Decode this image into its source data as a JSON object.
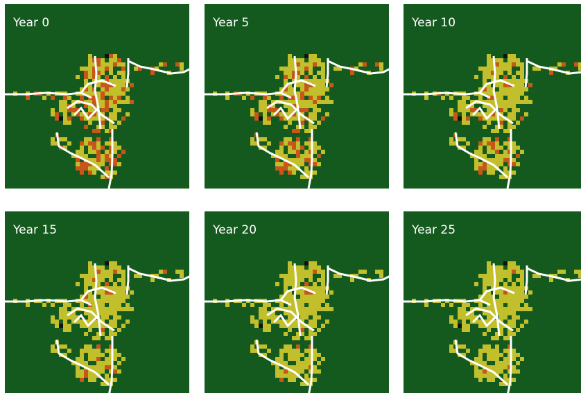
{
  "panels": [
    {
      "label": "Year 0"
    },
    {
      "label": "Year 5"
    },
    {
      "label": "Year 10"
    },
    {
      "label": "Year 15"
    },
    {
      "label": "Year 20"
    },
    {
      "label": "Year 25"
    }
  ]
}
